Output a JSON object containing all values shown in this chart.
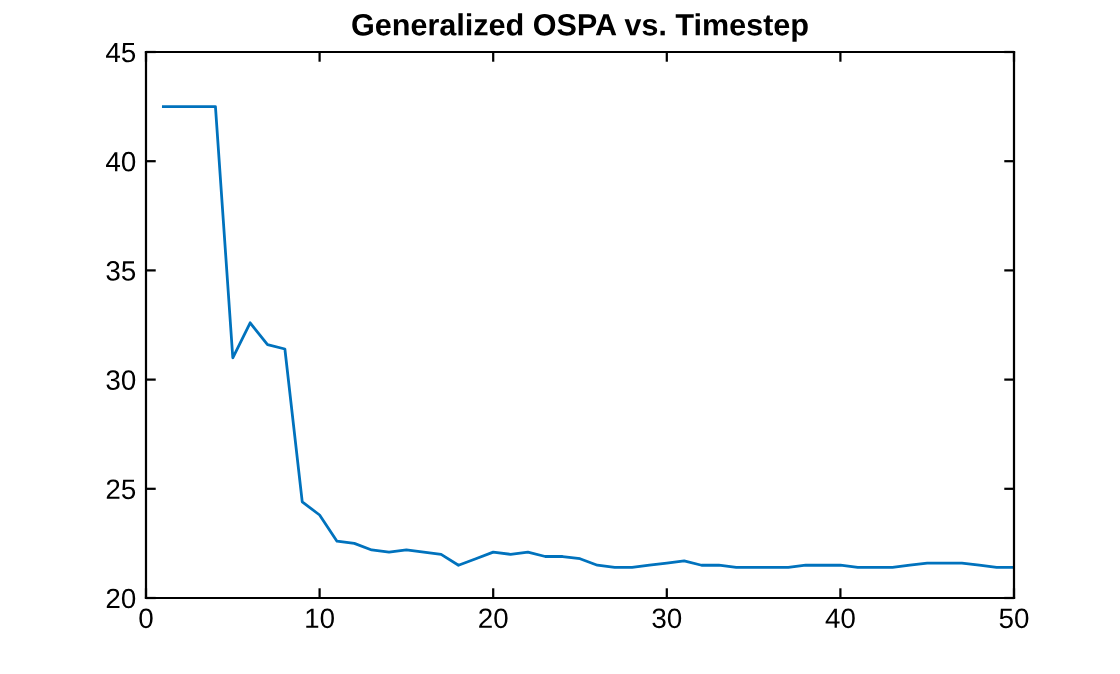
{
  "chart_data": {
    "type": "line",
    "title": "Generalized OSPA vs. Timestep",
    "x": [
      1,
      2,
      3,
      4,
      5,
      6,
      7,
      8,
      9,
      10,
      11,
      12,
      13,
      14,
      15,
      16,
      17,
      18,
      19,
      20,
      21,
      22,
      23,
      24,
      25,
      26,
      27,
      28,
      29,
      30,
      31,
      32,
      33,
      34,
      35,
      36,
      37,
      38,
      39,
      40,
      41,
      42,
      43,
      44,
      45,
      46,
      47,
      48,
      49,
      50
    ],
    "series": [
      {
        "color": "#0072bd",
        "values": [
          42.5,
          42.5,
          42.5,
          42.5,
          31.0,
          32.6,
          31.6,
          31.4,
          24.4,
          23.8,
          22.6,
          22.5,
          22.2,
          22.1,
          22.2,
          22.1,
          22.0,
          21.5,
          21.8,
          22.1,
          22.0,
          22.1,
          21.9,
          21.9,
          21.8,
          21.5,
          21.4,
          21.4,
          21.5,
          21.6,
          21.7,
          21.5,
          21.5,
          21.4,
          21.4,
          21.4,
          21.4,
          21.5,
          21.5,
          21.5,
          21.4,
          21.4,
          21.4,
          21.5,
          21.6,
          21.6,
          21.6,
          21.5,
          21.4,
          21.4
        ]
      }
    ],
    "xlim": [
      0,
      50
    ],
    "xticks": [
      0,
      10,
      20,
      30,
      40,
      50
    ],
    "ylim": [
      20,
      45
    ],
    "yticks": [
      20,
      25,
      30,
      35,
      40,
      45
    ],
    "grid": false,
    "marker": "none",
    "line_style": "solid"
  }
}
